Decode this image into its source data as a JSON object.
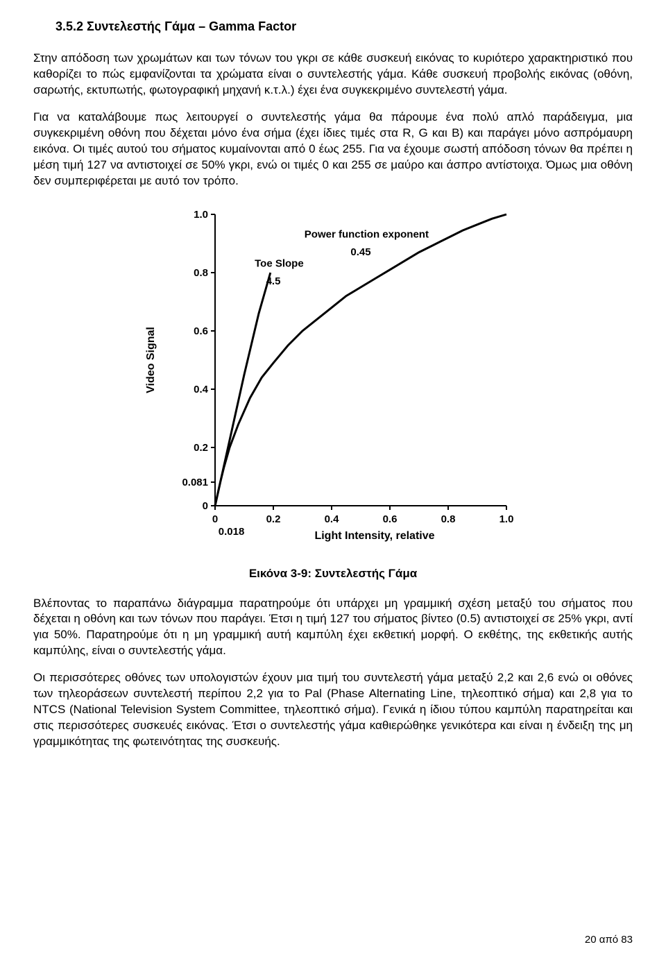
{
  "heading": "3.5.2  Συντελεστής Γάμα – Gamma Factor",
  "para1": "Στην απόδοση των χρωμάτων και των τόνων του γκρι σε κάθε συσκευή εικόνας το κυριότερο χαρακτηριστικό που καθορίζει το πώς εμφανίζονται τα χρώματα είναι ο συντελεστής γάμα. Κάθε συσκευή προβολής εικόνας (οθόνη, σαρωτής, εκτυπωτής, φωτογραφική μηχανή κ.τ.λ.) έχει ένα συγκεκριμένο συντελεστή γάμα.",
  "para2": "Για να καταλάβουμε πως λειτουργεί ο συντελεστής γάμα θα πάρουμε ένα πολύ απλό παράδειγμα, μια συγκεκριμένη οθόνη που δέχεται μόνο ένα σήμα (έχει ίδιες τιμές στα R, G και  B) και παράγει μόνο ασπρόμαυρη εικόνα. Οι τιμές αυτού του σήματος κυμαίνονται από 0 έως 255. Για να έχουμε σωστή απόδοση τόνων θα πρέπει η μέση τιμή 127 να αντιστοιχεί σε 50% γκρι, ενώ οι τιμές 0 και 255 σε μαύρο και άσπρο αντίστοιχα. Όμως μια οθόνη δεν συμπεριφέρεται με αυτό τον τρόπο.",
  "para3": "Βλέποντας το παραπάνω διάγραμμα παρατηρούμε ότι υπάρχει μη γραμμική σχέση μεταξύ του σήματος που δέχεται η οθόνη και των τόνων που παράγει. Έτσι η τιμή 127 του σήματος βίντεο (0.5) αντιστοιχεί σε 25% γκρι, αντί για 50%. Παρατηρούμε ότι η μη γραμμική αυτή καμπύλη έχει εκθετική μορφή. Ο εκθέτης, της εκθετικής αυτής καμπύλης, είναι ο συντελεστής γάμα.",
  "para4": "Οι περισσότερες οθόνες των υπολογιστών έχουν μια τιμή του συντελεστή γάμα μεταξύ 2,2 και 2,6 ενώ οι οθόνες των τηλεοράσεων συντελεστή περίπου 2,2  για το Pal (Phase Alternating Line, τηλεοπτικό σήμα) και 2,8 για το NTCS (National Television System Committee, τηλεοπτικό σήμα). Γενικά η ίδιου τύπου καμπύλη παρατηρείται και στις περισσότερες συσκευές εικόνας. Έτσι ο συντελεστής γάμα καθιερώθηκε γενικότερα και είναι η ένδειξη της μη γραμμικότητας της φωτεινότητας της συσκευής.",
  "figure_caption": "Εικόνα 3-9: Συντελεστής Γάμα",
  "footer": "20 από 83",
  "chart": {
    "type": "line",
    "ylabel": "Video Signal",
    "xlabel": "Light Intensity, relative",
    "xlim": [
      0,
      1.0
    ],
    "ylim": [
      0,
      1.0
    ],
    "x_ticks": [
      0,
      0.2,
      0.4,
      0.6,
      0.8,
      1.0
    ],
    "y_ticks": [
      0,
      0.081,
      0.2,
      0.4,
      0.6,
      0.8,
      1.0
    ],
    "y_tick_labels": [
      "0",
      "0.081",
      "0.2",
      "0.4",
      "0.6",
      "0.8",
      "1.0"
    ],
    "x_tick_labels": [
      "0",
      "0.2",
      "0.4",
      "0.6",
      "0.8",
      "1.0"
    ],
    "x_origin_extra_label": "0.018",
    "annotations": {
      "power_exp_title": "Power function exponent",
      "power_exp_value": "0.45",
      "toe_slope_title": "Toe Slope",
      "toe_slope_value": "4.5"
    },
    "toe_line": {
      "points": [
        [
          0,
          0
        ],
        [
          0.02,
          0.09
        ],
        [
          0.05,
          0.225
        ],
        [
          0.1,
          0.45
        ],
        [
          0.15,
          0.66
        ],
        [
          0.19,
          0.8
        ]
      ],
      "color": "#000000",
      "width": 3
    },
    "gamma_curve": {
      "points": [
        [
          0.0,
          0.0
        ],
        [
          0.018,
          0.081
        ],
        [
          0.03,
          0.13
        ],
        [
          0.05,
          0.2
        ],
        [
          0.08,
          0.28
        ],
        [
          0.12,
          0.37
        ],
        [
          0.16,
          0.44
        ],
        [
          0.2,
          0.49
        ],
        [
          0.25,
          0.55
        ],
        [
          0.3,
          0.6
        ],
        [
          0.35,
          0.64
        ],
        [
          0.4,
          0.68
        ],
        [
          0.45,
          0.72
        ],
        [
          0.5,
          0.75
        ],
        [
          0.55,
          0.78
        ],
        [
          0.6,
          0.81
        ],
        [
          0.65,
          0.84
        ],
        [
          0.7,
          0.87
        ],
        [
          0.75,
          0.895
        ],
        [
          0.8,
          0.92
        ],
        [
          0.85,
          0.945
        ],
        [
          0.9,
          0.965
        ],
        [
          0.95,
          0.985
        ],
        [
          1.0,
          1.0
        ]
      ],
      "color": "#000000",
      "width": 3
    },
    "background_color": "#ffffff",
    "axis_color": "#000000",
    "tick_fontsize": 15,
    "label_fontsize": 16,
    "annotation_fontsize": 15
  }
}
